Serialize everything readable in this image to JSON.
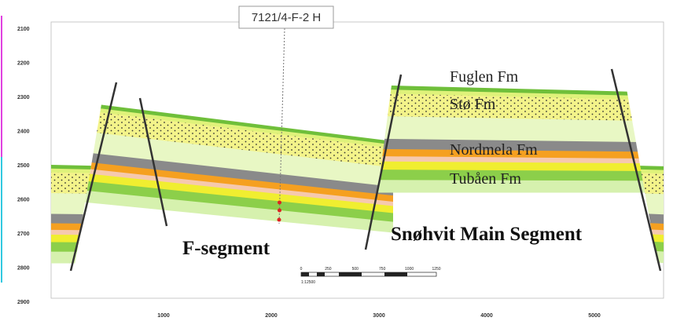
{
  "well": {
    "label": "7121/4-F-2 H"
  },
  "depth_axis": {
    "labels": [
      "2100",
      "2200",
      "2300",
      "2400",
      "2500",
      "2600",
      "2700",
      "2800",
      "2900"
    ]
  },
  "distance_axis": {
    "labels": [
      "1000",
      "2000",
      "3000",
      "4000",
      "5000"
    ]
  },
  "formations": [
    {
      "label": "Fuglen Fm"
    },
    {
      "label": "Stø Fm"
    },
    {
      "label": "Nordmela Fm"
    },
    {
      "label": "Tubåen Fm"
    }
  ],
  "segments": [
    {
      "label": "F-segment"
    },
    {
      "label": "Snøhvit Main Segment"
    }
  ],
  "scale_bar": {
    "labels": [
      "0",
      "250",
      "500",
      "750",
      "1000",
      "1250"
    ],
    "ratio": "1:12500"
  }
}
